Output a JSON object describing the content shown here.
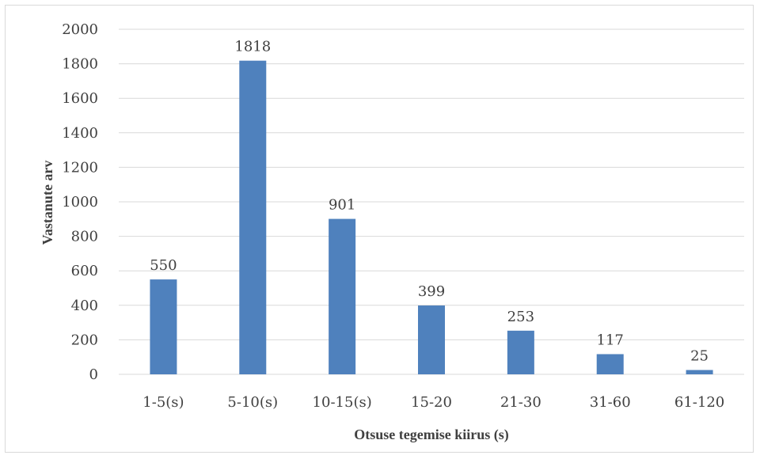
{
  "chart_data": {
    "type": "bar",
    "categories": [
      "1-5(s)",
      "5-10(s)",
      "10-15(s)",
      "15-20",
      "21-30",
      "31-60",
      "61-120"
    ],
    "values": [
      550,
      1818,
      901,
      399,
      253,
      117,
      25
    ],
    "xlabel": "Otsuse tegemise kiirus (s)",
    "ylabel": "Vastanute arv",
    "ylim": [
      0,
      2000
    ],
    "yticks": [
      0,
      200,
      400,
      600,
      800,
      1000,
      1200,
      1400,
      1600,
      1800,
      2000
    ],
    "grid": true,
    "legend": "none",
    "bar_color": "#4f81bd"
  }
}
